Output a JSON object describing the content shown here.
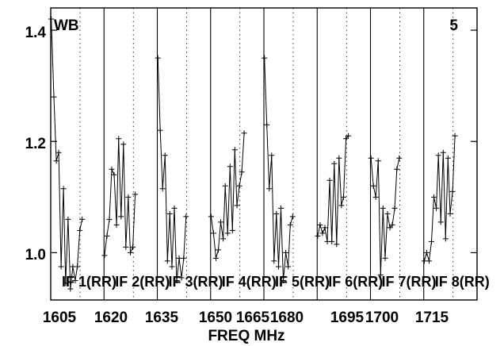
{
  "chart_data": {
    "type": "line",
    "xlabel": "FREQ MHz",
    "ylabel": "",
    "top_left_label": "WB",
    "top_right_label": "5",
    "y_ticks": [
      1.0,
      1.2,
      1.4
    ],
    "y_tick_labels": [
      "1.0",
      "1.2",
      "1.4"
    ],
    "ylim": [
      0.915,
      1.44
    ],
    "grid": "vertical dashed",
    "x_tick_labels": [
      "1605",
      "1620",
      "1635",
      "1650",
      "1665",
      "1680",
      "1695",
      "1700",
      "1715"
    ],
    "panels": [
      {
        "label": "IF 1(RR)",
        "freq_range": [
          1600,
          1620
        ],
        "x": [
          1600.2,
          1601.2,
          1602.1,
          1603.0,
          1603.9,
          1604.8,
          1605.6,
          1606.5,
          1607.4,
          1608.3,
          1609.2,
          1610.0,
          1610.9,
          1611.8
        ],
        "values": [
          1.42,
          1.28,
          1.165,
          1.18,
          0.975,
          1.115,
          0.945,
          1.06,
          0.935,
          0.975,
          0.95,
          0.975,
          1.04,
          1.06
        ]
      },
      {
        "label": "IF 2(RR)",
        "freq_range": [
          1620,
          1640
        ],
        "x": [
          1620.2,
          1621.1,
          1622.0,
          1622.9,
          1623.8,
          1624.7,
          1625.5,
          1626.4,
          1627.3,
          1628.2,
          1629.1,
          1629.9,
          1630.8,
          1631.7
        ],
        "values": [
          0.995,
          1.03,
          1.06,
          1.15,
          1.14,
          1.05,
          1.205,
          1.065,
          1.195,
          1.01,
          1.1,
          1.0,
          1.01,
          1.105
        ]
      },
      {
        "label": "IF 3(RR)",
        "freq_range": [
          1640,
          1660
        ],
        "x": [
          1640.2,
          1641.1,
          1642.0,
          1642.9,
          1643.8,
          1644.7,
          1645.5,
          1646.4,
          1647.3,
          1648.2,
          1649.1,
          1649.9,
          1650.8
        ],
        "values": [
          1.35,
          1.22,
          1.115,
          1.175,
          0.985,
          1.07,
          0.975,
          1.08,
          0.95,
          0.99,
          0.955,
          0.99,
          1.065
        ]
      },
      {
        "label": "IF 4(RR)",
        "freq_range": [
          1660,
          1680
        ],
        "x": [
          1660.2,
          1661.1,
          1662.0,
          1662.9,
          1663.8,
          1664.7,
          1665.5,
          1666.4,
          1667.3,
          1668.2,
          1669.1,
          1669.9,
          1670.8,
          1671.7,
          1672.6
        ],
        "values": [
          1.065,
          1.035,
          0.99,
          1.005,
          1.055,
          1.025,
          1.12,
          1.035,
          1.155,
          1.04,
          1.185,
          1.085,
          1.12,
          1.145,
          1.215
        ]
      },
      {
        "label": "IF 5(RR)",
        "freq_range": [
          1680,
          1700
        ],
        "x": [
          1680.2,
          1681.1,
          1682.0,
          1682.9,
          1683.8,
          1684.7,
          1685.5,
          1686.4,
          1687.3,
          1688.2,
          1689.1,
          1689.9,
          1690.8
        ],
        "values": [
          1.35,
          1.23,
          1.115,
          1.175,
          0.985,
          1.07,
          0.975,
          1.08,
          0.95,
          1.0,
          0.975,
          1.05,
          1.065
        ]
      },
      {
        "label": "IF 6(RR)",
        "freq_range": [
          1700,
          1720
        ],
        "x": [
          1700.2,
          1701.1,
          1702.0,
          1702.9,
          1703.8,
          1704.7,
          1705.5,
          1706.4,
          1707.3,
          1708.2,
          1709.1,
          1709.9,
          1710.8,
          1711.7
        ],
        "values": [
          1.03,
          1.05,
          1.035,
          1.045,
          1.02,
          1.13,
          1.02,
          1.16,
          1.015,
          1.17,
          1.085,
          1.1,
          1.205,
          1.21
        ]
      },
      {
        "label": "IF 7(RR)",
        "freq_range": [
          1720,
          1740
        ],
        "x": [
          1720.2,
          1721.1,
          1722.0,
          1722.9,
          1723.8,
          1724.7,
          1725.5,
          1726.4,
          1727.3,
          1728.2,
          1729.1,
          1729.9,
          1730.8
        ],
        "values": [
          1.17,
          1.12,
          1.1,
          1.165,
          0.96,
          1.08,
          0.99,
          1.07,
          1.045,
          1.05,
          1.08,
          1.15,
          1.17
        ]
      },
      {
        "label": "IF 8(RR)",
        "freq_range": [
          1740,
          1760
        ],
        "x": [
          1740.2,
          1741.1,
          1742.0,
          1742.9,
          1743.8,
          1744.7,
          1745.5,
          1746.4,
          1747.3,
          1748.2,
          1749.1,
          1749.9,
          1750.8,
          1751.7
        ],
        "values": [
          0.985,
          1.0,
          0.985,
          1.02,
          1.1,
          1.08,
          1.175,
          1.055,
          1.18,
          1.025,
          1.17,
          1.07,
          1.11,
          1.21
        ]
      }
    ]
  }
}
